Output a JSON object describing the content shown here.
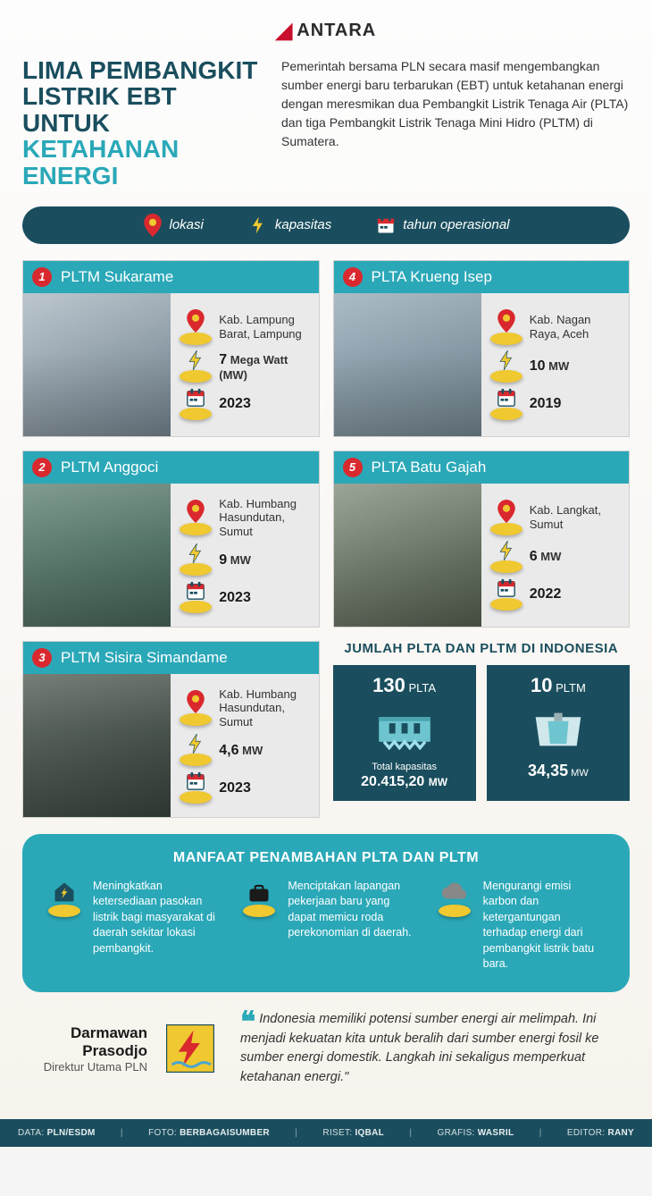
{
  "logo": {
    "brand": "ANTARA"
  },
  "header": {
    "title_line1": "LIMA PEMBANGKIT",
    "title_line2": "LISTRIK EBT UNTUK",
    "title_accent": "KETAHANAN ENERGI",
    "intro": "Pemerintah bersama PLN secara masif mengembangkan sumber energi baru terbarukan (EBT) untuk ketahanan energi dengan meresmikan dua Pembangkit Listrik Tenaga Air (PLTA) dan tiga Pembangkit Listrik Tenaga Mini Hidro (PLTM) di Sumatera."
  },
  "legend": {
    "location": "lokasi",
    "capacity": "kapasitas",
    "year": "tahun operasional"
  },
  "plants": [
    {
      "num": "1",
      "name": "PLTM Sukarame",
      "loc": "Kab. Lampung Barat, Lampung",
      "cap": "7",
      "unit": "Mega Watt (MW)",
      "year": "2023",
      "photo": "ph1"
    },
    {
      "num": "2",
      "name": "PLTM Anggoci",
      "loc": "Kab. Humbang Hasundutan, Sumut",
      "cap": "9",
      "unit": "MW",
      "year": "2023",
      "photo": "ph2"
    },
    {
      "num": "3",
      "name": "PLTM Sisira Simandame",
      "loc": "Kab. Humbang Hasundutan, Sumut",
      "cap": "4,6",
      "unit": "MW",
      "year": "2023",
      "photo": "ph3"
    },
    {
      "num": "4",
      "name": "PLTA Krueng Isep",
      "loc": "Kab. Nagan Raya, Aceh",
      "cap": "10",
      "unit": "MW",
      "year": "2019",
      "photo": "ph4"
    },
    {
      "num": "5",
      "name": "PLTA Batu Gajah",
      "loc": "Kab. Langkat, Sumut",
      "cap": "6",
      "unit": "MW",
      "year": "2022",
      "photo": "ph5"
    }
  ],
  "totals": {
    "heading": "JUMLAH PLTA DAN PLTM DI INDONESIA",
    "items": [
      {
        "count": "130",
        "label": "PLTA",
        "sub_label": "Total kapasitas",
        "capacity": "20.415,20",
        "unit": "MW"
      },
      {
        "count": "10",
        "label": "PLTM",
        "sub_label": "",
        "capacity": "34,35",
        "unit": "MW"
      }
    ]
  },
  "benefits": {
    "heading": "MANFAAT PENAMBAHAN PLTA DAN PLTM",
    "items": [
      "Meningkatkan ketersediaan pasokan listrik bagi masyarakat di daerah sekitar lokasi pembangkit.",
      "Menciptakan lapangan pekerjaan baru yang dapat memicu roda perekonomian di daerah.",
      "Mengurangi emisi karbon dan ketergantungan terhadap energi dari pembangkit listrik batu bara."
    ]
  },
  "quote": {
    "name": "Darmawan Prasodjo",
    "title": "Direktur Utama PLN",
    "text": "Indonesia memiliki potensi sumber energi air melimpah. Ini menjadi kekuatan kita untuk beralih dari sumber energi fosil ke sumber energi domestik. Langkah ini sekaligus memperkuat ketahanan energi.\""
  },
  "footer": {
    "data_label": "DATA:",
    "data_val": "PLN/ESDM",
    "foto_label": "FOTO:",
    "foto_val": "BERBAGAISUMBER",
    "riset_label": "RISET:",
    "riset_val": "IQBAL",
    "grafis_label": "GRAFIS:",
    "grafis_val": "WASRIL",
    "editor_label": "EDITOR:",
    "editor_val": "RANY"
  },
  "colors": {
    "dark_teal": "#1a4e5e",
    "teal": "#2aa8b8",
    "red": "#d9292e",
    "yellow": "#f0c830",
    "text": "#333333",
    "bg": "#f7f3ed"
  }
}
